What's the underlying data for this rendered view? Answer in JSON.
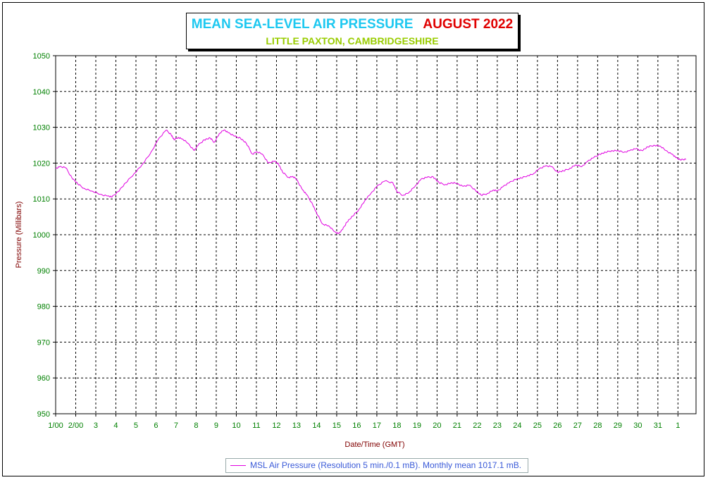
{
  "chart_data": {
    "type": "line",
    "title": "MEAN SEA-LEVEL AIR PRESSURE",
    "title_period": "AUGUST 2022",
    "subtitle": "LITTLE PAXTON, CAMBRIDGESHIRE",
    "xlabel": "Date/Time (GMT)",
    "ylabel": "Pressure (Millibars)",
    "ylim": [
      950,
      1050
    ],
    "y_ticks": [
      "1050",
      "1040",
      "1030",
      "1020",
      "1010",
      "1000",
      "990",
      "980",
      "970",
      "960",
      "950"
    ],
    "x_ticks": [
      "1/00",
      "2/00",
      "3",
      "4",
      "5",
      "6",
      "7",
      "8",
      "9",
      "10",
      "11",
      "12",
      "13",
      "14",
      "15",
      "16",
      "17",
      "18",
      "19",
      "20",
      "21",
      "22",
      "23",
      "24",
      "25",
      "26",
      "27",
      "28",
      "29",
      "30",
      "31",
      "1"
    ],
    "xlim_days": [
      1,
      32.9
    ],
    "grid": true,
    "series": [
      {
        "name": "MSL Air Pressure (Resolution 5 min./0.1 mB). Monthly mean 1017.1 mB.",
        "color": "#e000e0",
        "x": [
          1.0,
          1.2,
          1.5,
          1.8,
          2.1,
          2.4,
          2.8,
          3.2,
          3.6,
          3.8,
          4.1,
          4.5,
          4.9,
          5.3,
          5.7,
          6.1,
          6.5,
          6.75,
          6.9,
          7.1,
          7.3,
          7.6,
          7.9,
          8.1,
          8.4,
          8.7,
          8.9,
          9.15,
          9.4,
          9.6,
          9.9,
          10.2,
          10.5,
          10.8,
          11.0,
          11.3,
          11.6,
          11.9,
          12.1,
          12.3,
          12.6,
          12.8,
          13.0,
          13.3,
          13.5,
          13.8,
          14.0,
          14.3,
          14.6,
          14.9,
          15.1,
          15.3,
          15.5,
          15.8,
          16.1,
          16.4,
          16.7,
          17.0,
          17.4,
          17.8,
          18.0,
          18.3,
          18.6,
          18.9,
          19.2,
          19.5,
          19.8,
          20.1,
          20.4,
          20.7,
          21.0,
          21.3,
          21.6,
          21.9,
          22.2,
          22.5,
          22.8,
          23.0,
          23.3,
          23.6,
          23.9,
          24.2,
          24.5,
          24.8,
          25.1,
          25.4,
          25.7,
          26.0,
          26.3,
          26.6,
          26.9,
          27.2,
          27.5,
          27.8,
          28.1,
          28.4,
          28.7,
          29.0,
          29.3,
          29.6,
          29.9,
          30.2,
          30.5,
          30.8,
          31.1,
          31.4,
          31.7,
          31.9,
          32.1,
          32.4
        ],
        "values": [
          1018.5,
          1019.0,
          1018.7,
          1016.0,
          1014.2,
          1013.0,
          1012.2,
          1011.3,
          1010.8,
          1010.5,
          1012.0,
          1014.5,
          1017.0,
          1019.5,
          1022.5,
          1026.5,
          1029.2,
          1028.0,
          1026.5,
          1027.2,
          1026.8,
          1025.5,
          1023.5,
          1025.0,
          1026.5,
          1027.0,
          1025.8,
          1028.2,
          1029.3,
          1028.5,
          1027.5,
          1027.0,
          1025.5,
          1022.5,
          1023.2,
          1022.5,
          1020.0,
          1020.5,
          1019.8,
          1017.5,
          1016.0,
          1016.3,
          1015.5,
          1012.5,
          1011.2,
          1008.5,
          1006.0,
          1003.0,
          1002.5,
          1000.8,
          1000.3,
          1001.5,
          1003.5,
          1005.2,
          1007.0,
          1009.5,
          1011.5,
          1013.5,
          1015.0,
          1014.5,
          1012.0,
          1011.0,
          1011.8,
          1013.5,
          1015.5,
          1016.0,
          1016.2,
          1014.5,
          1014.0,
          1014.5,
          1014.3,
          1013.5,
          1013.8,
          1012.5,
          1011.0,
          1011.5,
          1012.5,
          1012.2,
          1013.5,
          1014.5,
          1015.5,
          1015.8,
          1016.5,
          1017.0,
          1018.5,
          1019.2,
          1019.0,
          1017.5,
          1017.8,
          1018.5,
          1019.5,
          1019.0,
          1020.5,
          1021.5,
          1022.5,
          1023.0,
          1023.5,
          1023.5,
          1023.0,
          1023.5,
          1024.0,
          1023.5,
          1024.5,
          1025.0,
          1024.8,
          1023.5,
          1022.5,
          1021.5,
          1021.0,
          1021.0
        ]
      }
    ],
    "legend_position": "bottom-center"
  },
  "colors": {
    "axis_tick_labels": "#008000",
    "axis_titles": "#800000",
    "series_line": "#e000e0",
    "title_main": "#1ec8f0",
    "title_period": "#e00000",
    "subtitle": "#99cc00",
    "legend_text": "#3a5ad8"
  }
}
